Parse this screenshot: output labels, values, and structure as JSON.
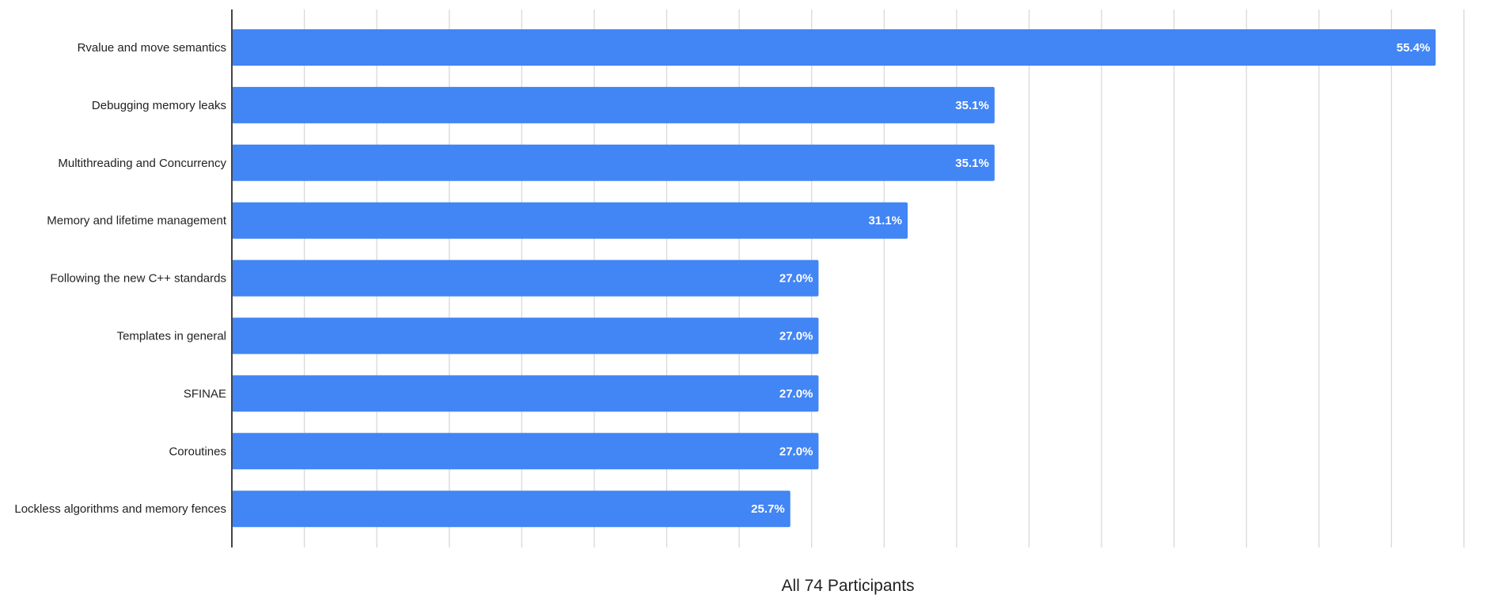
{
  "chart_data": {
    "type": "bar",
    "orientation": "horizontal",
    "categories": [
      "Rvalue and move semantics",
      "Debugging memory leaks",
      "Multithreading and Concurrency",
      "Memory and lifetime management",
      "Following the new C++ standards",
      "Templates in general",
      "SFINAE",
      "Coroutines",
      "Lockless algorithms and memory fences"
    ],
    "values": [
      55.4,
      35.1,
      35.1,
      31.1,
      27.0,
      27.0,
      27.0,
      27.0,
      25.7
    ],
    "data_labels": [
      "55.4%",
      "35.1%",
      "35.1%",
      "31.1%",
      "27.0%",
      "27.0%",
      "27.0%",
      "27.0%",
      "25.7%"
    ],
    "xlabel": "All 74 Participants",
    "xlim": [
      0,
      56.7
    ],
    "grid": true,
    "bar_color": "#4285f4",
    "gridline_color": "#d9d9d9",
    "axis_color": "#444444"
  }
}
